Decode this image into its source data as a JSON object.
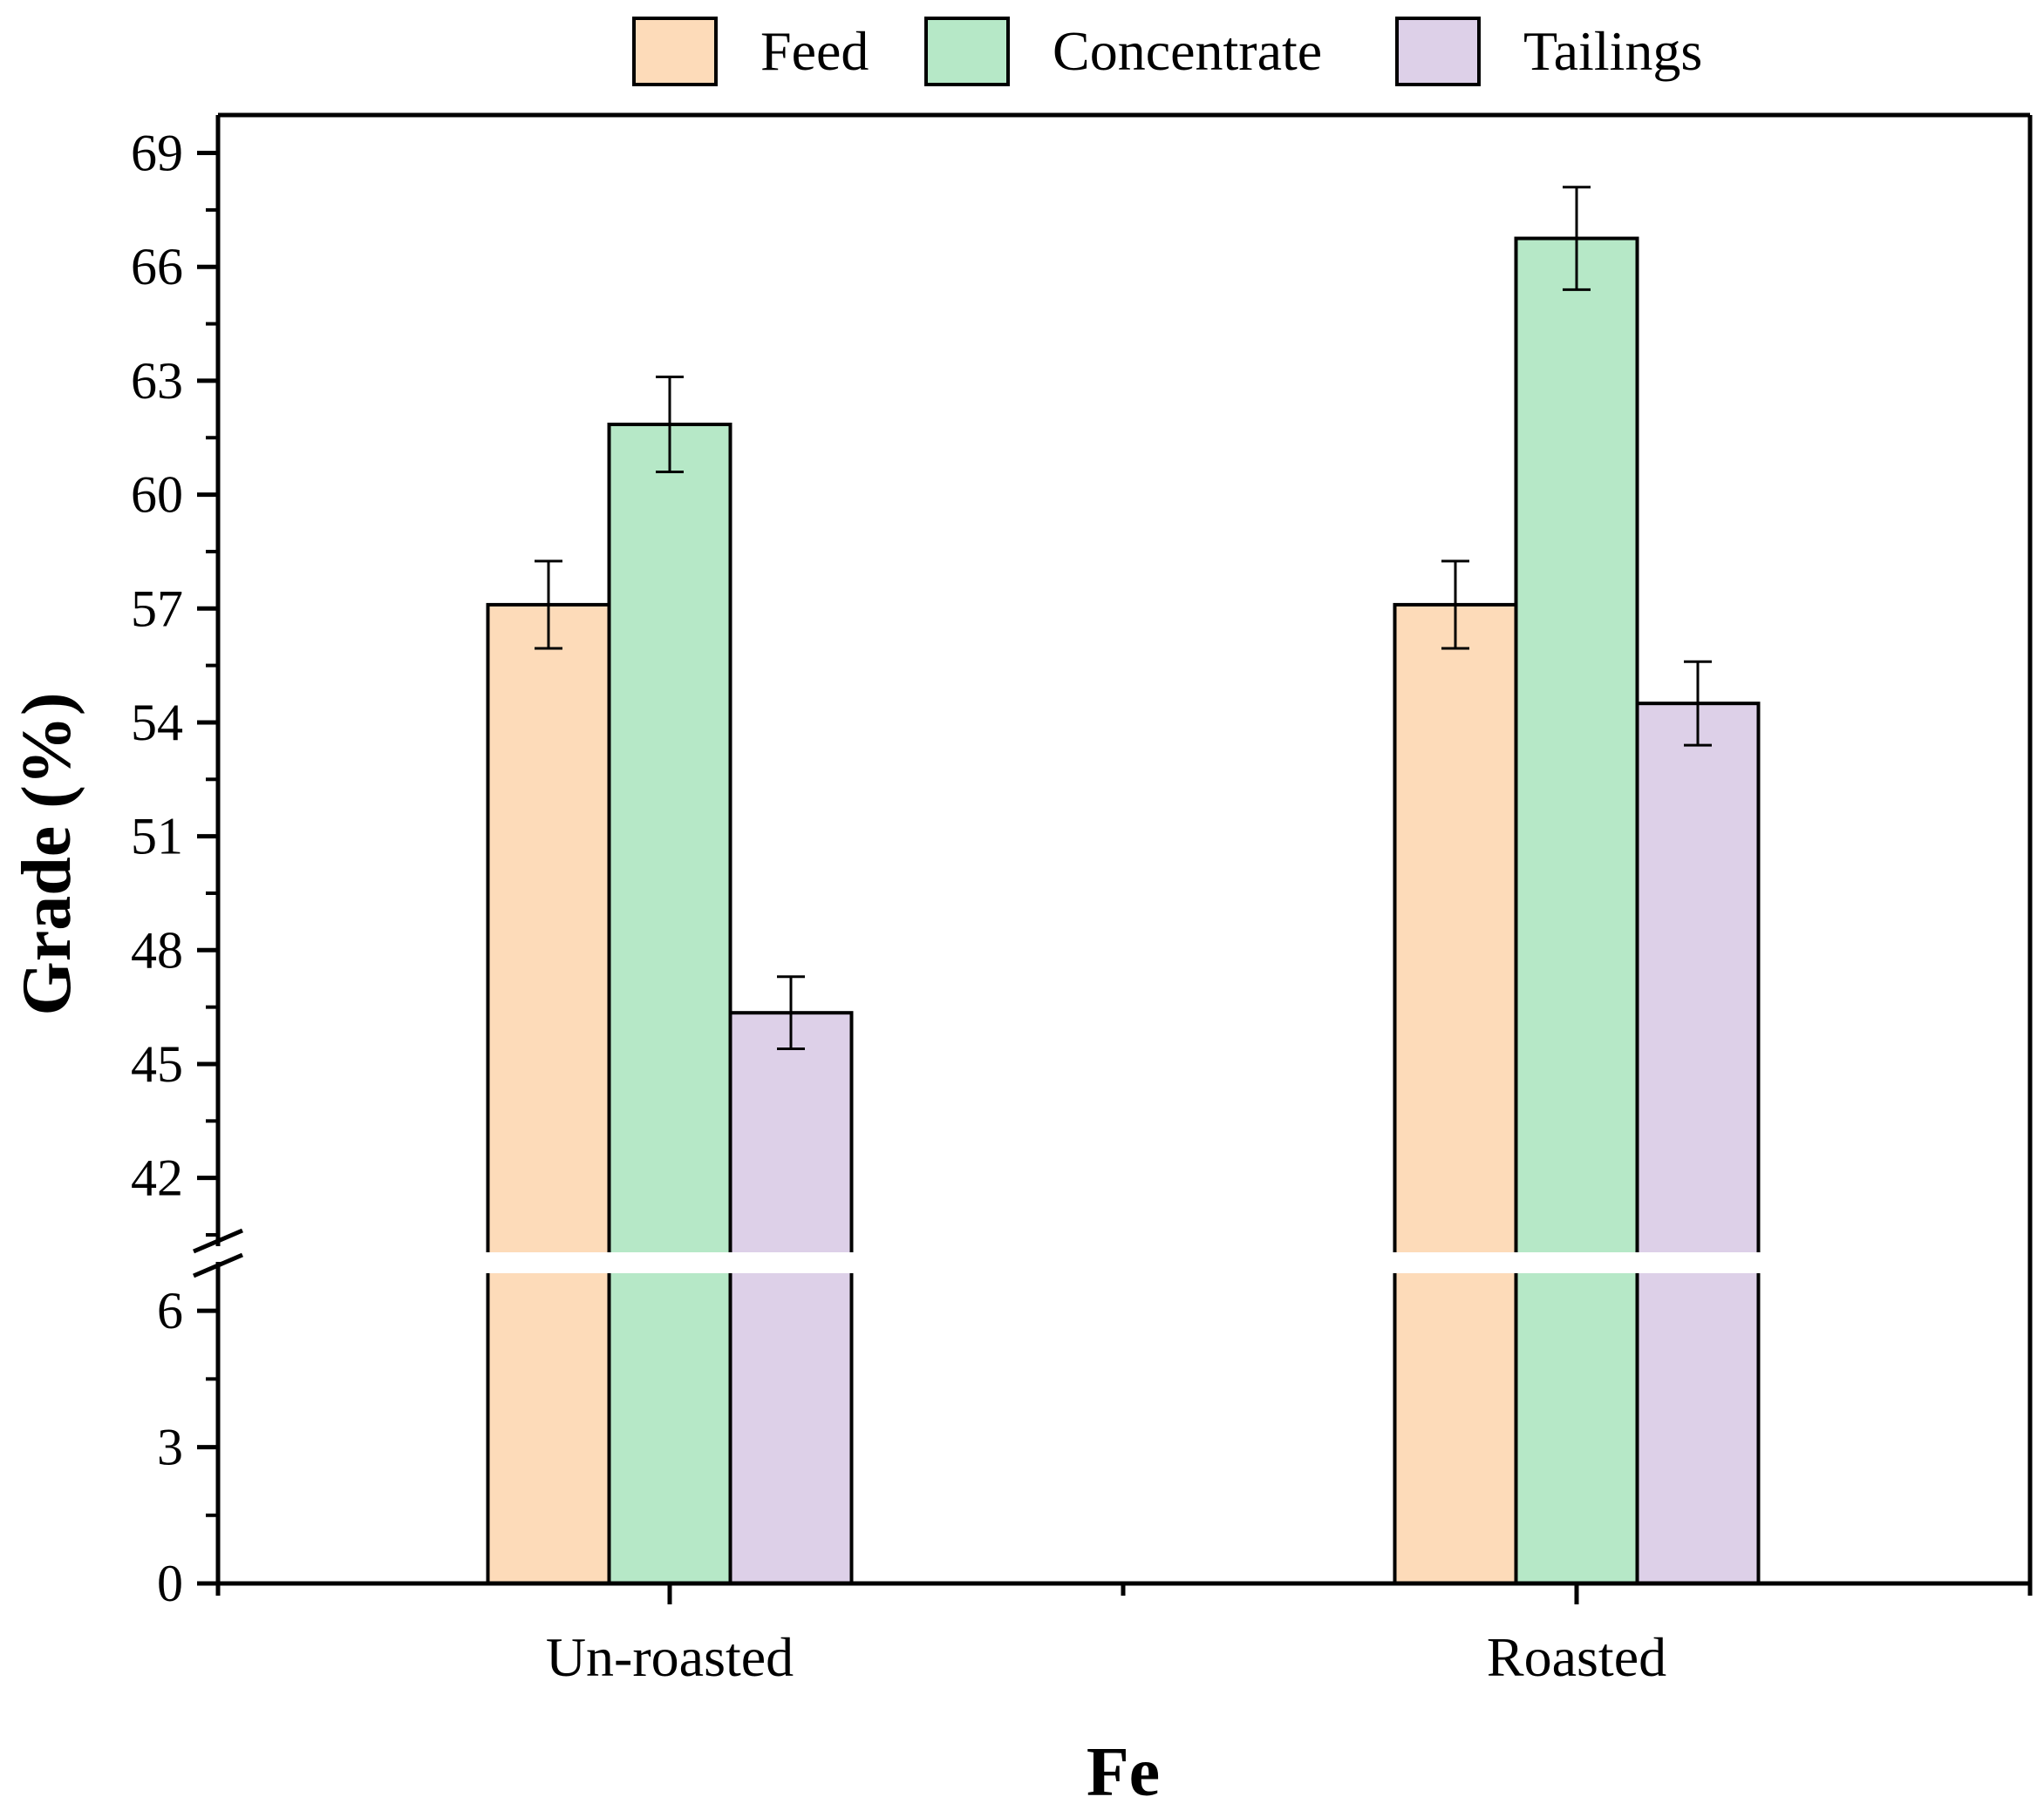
{
  "chart_data": {
    "type": "bar",
    "xlabel": "Fe",
    "ylabel": "Grade (%)",
    "categories": [
      "Un-roasted",
      "Roasted"
    ],
    "series": [
      {
        "name": "Feed",
        "color": "#FDDBB9",
        "values": [
          57.1,
          57.1
        ],
        "errors": [
          1.15,
          1.15
        ]
      },
      {
        "name": "Concentrate",
        "color": "#B6E8C7",
        "values": [
          61.85,
          66.75
        ],
        "errors": [
          1.25,
          1.35
        ]
      },
      {
        "name": "Tailings",
        "color": "#DDD0E8",
        "values": [
          46.35,
          54.5
        ],
        "errors": [
          0.95,
          1.1
        ]
      }
    ],
    "y_axis": {
      "broken": true,
      "lower_segment": {
        "range": [
          0,
          7
        ],
        "ticks": [
          0,
          3,
          6
        ]
      },
      "upper_segment": {
        "range": [
          40.5,
          70
        ],
        "ticks": [
          42,
          45,
          48,
          51,
          54,
          57,
          60,
          63,
          66,
          69
        ]
      }
    },
    "legend": {
      "position": "top",
      "entries": [
        "Feed",
        "Concentrate",
        "Tailings"
      ]
    },
    "grid": false
  }
}
